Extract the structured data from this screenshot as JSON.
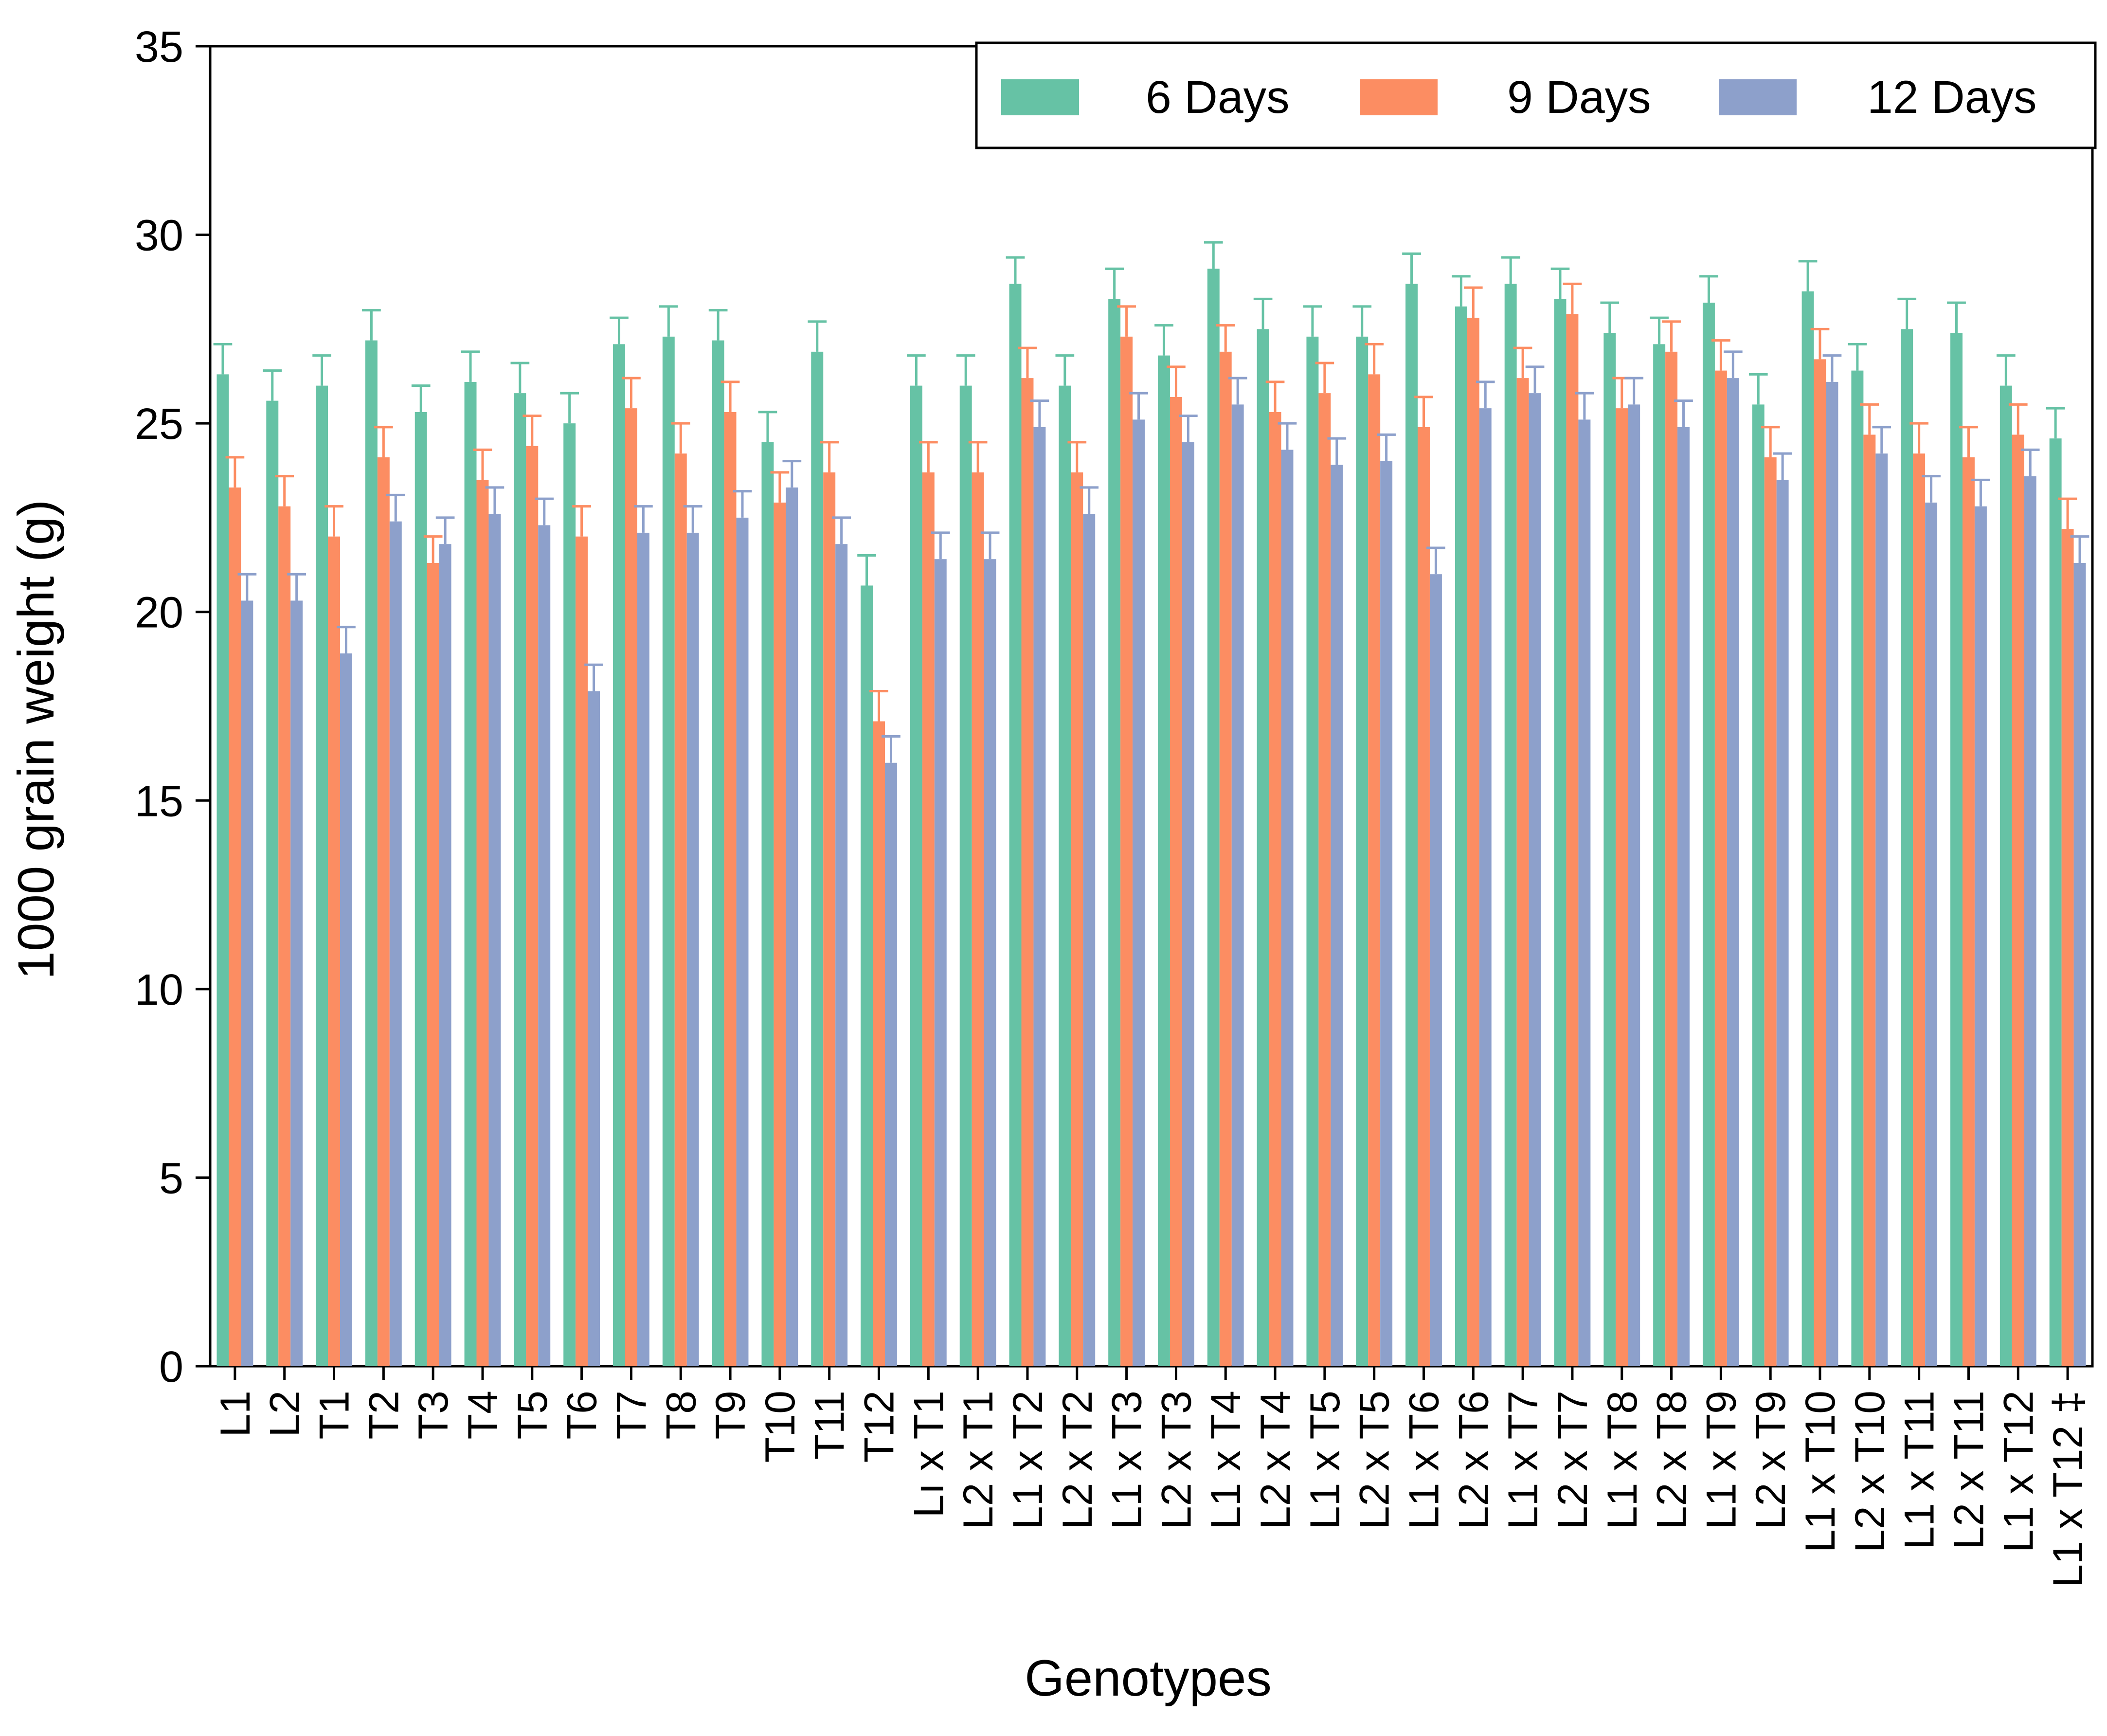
{
  "chart_data": {
    "type": "bar",
    "title": "",
    "xlabel": "Genotypes",
    "ylabel": "1000 grain weight (g)",
    "ylim": [
      0,
      35
    ],
    "yticks": [
      0,
      5,
      10,
      15,
      20,
      25,
      30,
      35
    ],
    "grid": false,
    "legend_position": "top-right",
    "categories": [
      "L1",
      "L2",
      "T1",
      "T2",
      "T3",
      "T4",
      "T5",
      "T6",
      "T7",
      "T8",
      "T9",
      "T10",
      "T11",
      "T12",
      "Lı x T1",
      "L2 x T1",
      "L1 x T2",
      "L2 x T2",
      "L1 x T3",
      "L2 x T3",
      "L1 x T4",
      "L2 x T4",
      "L1 x T5",
      "L2 x T5",
      "L1 x T6",
      "L2 x T6",
      "L1 x T7",
      "L2 x T7",
      "L1 x T8",
      "L2 x T8",
      "L1 x T9",
      "L2 x T9",
      "L1 x T10",
      "L2 x T10",
      "L1 x T11",
      "L2 x T11",
      "L1 x T12",
      "L1 x T12 ‡"
    ],
    "series": [
      {
        "name": "6 Days",
        "color": "#66c2a5",
        "values": [
          26.3,
          25.6,
          26.0,
          27.2,
          25.3,
          26.1,
          25.8,
          25.0,
          27.1,
          27.3,
          27.2,
          24.5,
          26.9,
          20.7,
          26.0,
          26.0,
          28.7,
          26.0,
          28.3,
          26.8,
          29.1,
          27.5,
          27.3,
          27.3,
          28.7,
          28.1,
          28.7,
          28.3,
          27.4,
          27.1,
          28.2,
          25.5,
          28.5,
          26.4,
          27.5,
          27.4,
          26.0,
          24.6
        ],
        "errors": [
          0.8,
          0.8,
          0.8,
          0.8,
          0.7,
          0.8,
          0.8,
          0.8,
          0.7,
          0.8,
          0.8,
          0.8,
          0.8,
          0.8,
          0.8,
          0.8,
          0.7,
          0.8,
          0.8,
          0.8,
          0.7,
          0.8,
          0.8,
          0.8,
          0.8,
          0.8,
          0.7,
          0.8,
          0.8,
          0.7,
          0.7,
          0.8,
          0.8,
          0.7,
          0.8,
          0.8,
          0.8,
          0.8
        ]
      },
      {
        "name": "9 Days",
        "color": "#fc8d62",
        "values": [
          23.3,
          22.8,
          22.0,
          24.1,
          21.3,
          23.5,
          24.4,
          22.0,
          25.4,
          24.2,
          25.3,
          22.9,
          23.7,
          17.1,
          23.7,
          23.7,
          26.2,
          23.7,
          27.3,
          25.7,
          26.9,
          25.3,
          25.8,
          26.3,
          24.9,
          27.8,
          26.2,
          27.9,
          25.4,
          26.9,
          26.4,
          24.1,
          26.7,
          24.7,
          24.2,
          24.1,
          24.7,
          22.2
        ],
        "errors": [
          0.8,
          0.8,
          0.8,
          0.8,
          0.7,
          0.8,
          0.8,
          0.8,
          0.8,
          0.8,
          0.8,
          0.8,
          0.8,
          0.8,
          0.8,
          0.8,
          0.8,
          0.8,
          0.8,
          0.8,
          0.7,
          0.8,
          0.8,
          0.8,
          0.8,
          0.8,
          0.8,
          0.8,
          0.8,
          0.8,
          0.8,
          0.8,
          0.8,
          0.8,
          0.8,
          0.8,
          0.8,
          0.8
        ]
      },
      {
        "name": "12 Days",
        "color": "#8da0cb",
        "values": [
          20.3,
          20.3,
          18.9,
          22.4,
          21.8,
          22.6,
          22.3,
          17.9,
          22.1,
          22.1,
          22.5,
          23.3,
          21.8,
          16.0,
          21.4,
          21.4,
          24.9,
          22.6,
          25.1,
          24.5,
          25.5,
          24.3,
          23.9,
          24.0,
          21.0,
          25.4,
          25.8,
          25.1,
          25.5,
          24.9,
          26.2,
          23.5,
          26.1,
          24.2,
          22.9,
          22.8,
          23.6,
          21.3
        ],
        "errors": [
          0.7,
          0.7,
          0.7,
          0.7,
          0.7,
          0.7,
          0.7,
          0.7,
          0.7,
          0.7,
          0.7,
          0.7,
          0.7,
          0.7,
          0.7,
          0.7,
          0.7,
          0.7,
          0.7,
          0.7,
          0.7,
          0.7,
          0.7,
          0.7,
          0.7,
          0.7,
          0.7,
          0.7,
          0.7,
          0.7,
          0.7,
          0.7,
          0.7,
          0.7,
          0.7,
          0.7,
          0.7,
          0.7
        ]
      }
    ]
  }
}
